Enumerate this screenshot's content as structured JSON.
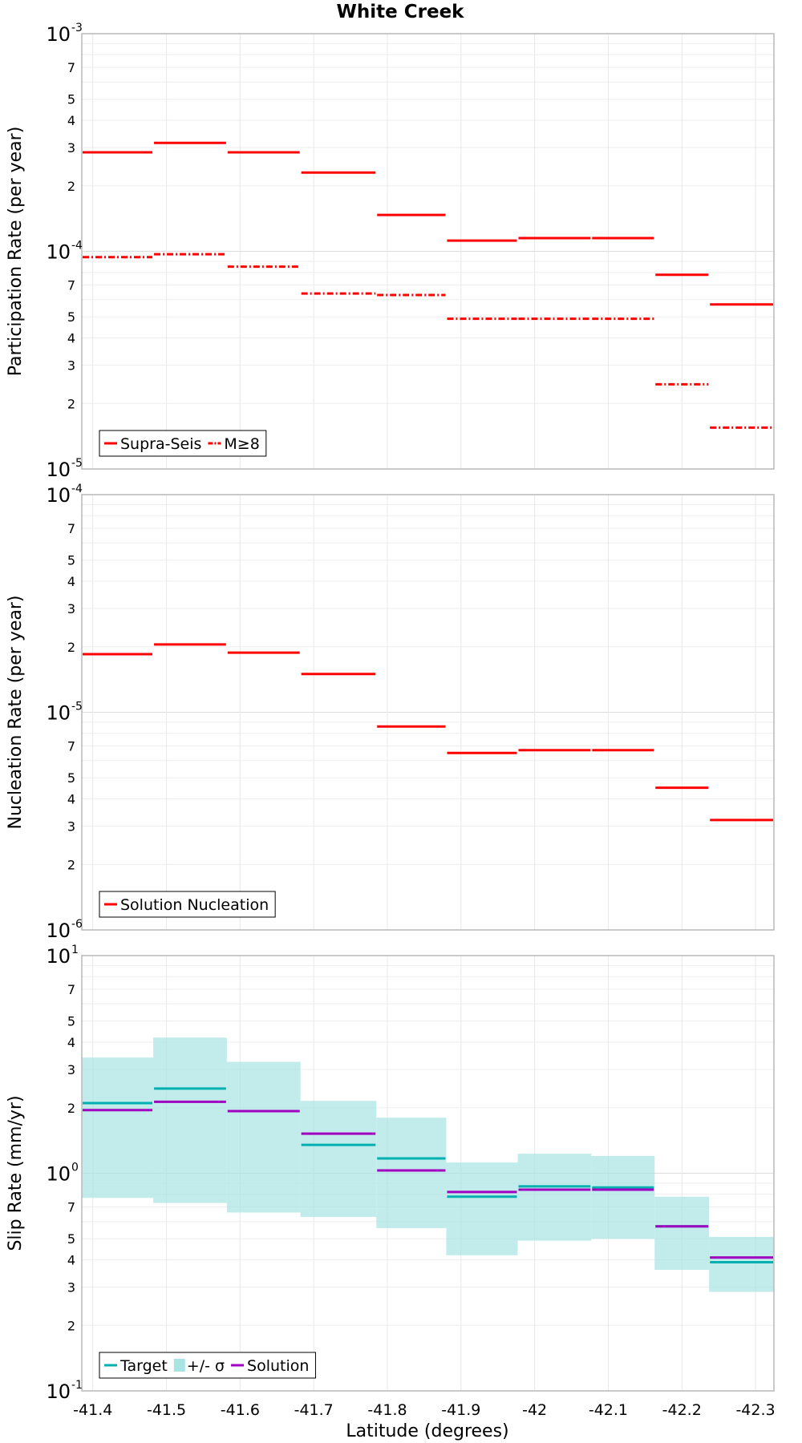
{
  "title": "White Creek",
  "xlabel": "Latitude (degrees)",
  "x_tick_labels": [
    "-41.4",
    "-41.5",
    "-41.6",
    "-41.7",
    "-41.8",
    "-41.9",
    "-42",
    "-42.1",
    "-42.2",
    "-42.3"
  ],
  "colors": {
    "red": "#ff0000",
    "cyan": "#00b0b0",
    "purple": "#a000c0",
    "band": "#a8e4e2",
    "grid": "#e8e8e8",
    "frame": "#b8b8b8"
  },
  "chart_data": [
    {
      "type": "line",
      "style": "step",
      "ylabel": "Participation Rate (per year)",
      "ylim": [
        1e-05,
        0.001
      ],
      "xlim": [
        -41.385,
        -42.325
      ],
      "x_ticks": [
        -41.4,
        -41.5,
        -41.6,
        -41.7,
        -41.8,
        -41.9,
        -42.0,
        -42.1,
        -42.2,
        -42.3
      ],
      "y_major_labels": [
        {
          "value": 0.001,
          "base": "10",
          "exp": "-3"
        },
        {
          "value": 0.0001,
          "base": "10",
          "exp": "-4"
        },
        {
          "value": 1e-05,
          "base": "10",
          "exp": "-5"
        }
      ],
      "y_minor_labels": [
        {
          "value": 0.0007,
          "label": "7"
        },
        {
          "value": 0.0005,
          "label": "5"
        },
        {
          "value": 0.0004,
          "label": "4"
        },
        {
          "value": 0.0003,
          "label": "3"
        },
        {
          "value": 0.0002,
          "label": "2"
        },
        {
          "value": 7e-05,
          "label": "7"
        },
        {
          "value": 5e-05,
          "label": "5"
        },
        {
          "value": 4e-05,
          "label": "4"
        },
        {
          "value": 3e-05,
          "label": "3"
        },
        {
          "value": 2e-05,
          "label": "2"
        }
      ],
      "legend": {
        "position": "bottom-left",
        "entries": [
          {
            "label": "Supra-Seis",
            "style": "solid"
          },
          {
            "label": "M≥8",
            "style": "dashdot"
          }
        ]
      },
      "series": [
        {
          "name": "Supra-Seis",
          "color": "#ff0000",
          "style": "solid",
          "segments": [
            {
              "x0": -41.385,
              "x1": -41.482,
              "y": 0.000285
            },
            {
              "x0": -41.482,
              "x1": -41.582,
              "y": 0.000315
            },
            {
              "x0": -41.582,
              "x1": -41.682,
              "y": 0.000285
            },
            {
              "x0": -41.682,
              "x1": -41.785,
              "y": 0.00023
            },
            {
              "x0": -41.785,
              "x1": -41.88,
              "y": 0.000147
            },
            {
              "x0": -41.88,
              "x1": -41.977,
              "y": 0.000112
            },
            {
              "x0": -41.977,
              "x1": -42.077,
              "y": 0.000115
            },
            {
              "x0": -42.077,
              "x1": -42.163,
              "y": 0.000115
            },
            {
              "x0": -42.163,
              "x1": -42.237,
              "y": 7.8e-05
            },
            {
              "x0": -42.237,
              "x1": -42.325,
              "y": 5.7e-05
            }
          ]
        },
        {
          "name": "M≥8",
          "color": "#ff0000",
          "style": "dashdot",
          "segments": [
            {
              "x0": -41.385,
              "x1": -41.482,
              "y": 9.4e-05
            },
            {
              "x0": -41.482,
              "x1": -41.582,
              "y": 9.7e-05
            },
            {
              "x0": -41.582,
              "x1": -41.682,
              "y": 8.5e-05
            },
            {
              "x0": -41.682,
              "x1": -41.785,
              "y": 6.4e-05
            },
            {
              "x0": -41.785,
              "x1": -41.88,
              "y": 6.3e-05
            },
            {
              "x0": -41.88,
              "x1": -41.977,
              "y": 4.9e-05
            },
            {
              "x0": -41.977,
              "x1": -42.077,
              "y": 4.9e-05
            },
            {
              "x0": -42.077,
              "x1": -42.163,
              "y": 4.9e-05
            },
            {
              "x0": -42.163,
              "x1": -42.237,
              "y": 2.45e-05
            },
            {
              "x0": -42.237,
              "x1": -42.325,
              "y": 1.55e-05
            }
          ]
        }
      ]
    },
    {
      "type": "line",
      "style": "step",
      "ylabel": "Nucleation Rate (per year)",
      "ylim": [
        1e-06,
        0.0001
      ],
      "xlim": [
        -41.385,
        -42.325
      ],
      "x_ticks": [
        -41.4,
        -41.5,
        -41.6,
        -41.7,
        -41.8,
        -41.9,
        -42.0,
        -42.1,
        -42.2,
        -42.3
      ],
      "y_major_labels": [
        {
          "value": 0.0001,
          "base": "10",
          "exp": "-4"
        },
        {
          "value": 1e-05,
          "base": "10",
          "exp": "-5"
        },
        {
          "value": 1e-06,
          "base": "10",
          "exp": "-6"
        }
      ],
      "y_minor_labels": [
        {
          "value": 7e-05,
          "label": "7"
        },
        {
          "value": 5e-05,
          "label": "5"
        },
        {
          "value": 4e-05,
          "label": "4"
        },
        {
          "value": 3e-05,
          "label": "3"
        },
        {
          "value": 2e-05,
          "label": "2"
        },
        {
          "value": 7e-06,
          "label": "7"
        },
        {
          "value": 5e-06,
          "label": "5"
        },
        {
          "value": 4e-06,
          "label": "4"
        },
        {
          "value": 3e-06,
          "label": "3"
        },
        {
          "value": 2e-06,
          "label": "2"
        }
      ],
      "legend": {
        "position": "bottom-left",
        "entries": [
          {
            "label": "Solution Nucleation",
            "style": "solid"
          }
        ]
      },
      "series": [
        {
          "name": "Solution Nucleation",
          "color": "#ff0000",
          "style": "solid",
          "segments": [
            {
              "x0": -41.385,
              "x1": -41.482,
              "y": 1.85e-05
            },
            {
              "x0": -41.482,
              "x1": -41.582,
              "y": 2.05e-05
            },
            {
              "x0": -41.582,
              "x1": -41.682,
              "y": 1.88e-05
            },
            {
              "x0": -41.682,
              "x1": -41.785,
              "y": 1.5e-05
            },
            {
              "x0": -41.785,
              "x1": -41.88,
              "y": 8.6e-06
            },
            {
              "x0": -41.88,
              "x1": -41.977,
              "y": 6.5e-06
            },
            {
              "x0": -41.977,
              "x1": -42.077,
              "y": 6.7e-06
            },
            {
              "x0": -42.077,
              "x1": -42.163,
              "y": 6.7e-06
            },
            {
              "x0": -42.163,
              "x1": -42.237,
              "y": 4.5e-06
            },
            {
              "x0": -42.237,
              "x1": -42.325,
              "y": 3.2e-06
            }
          ]
        }
      ]
    },
    {
      "type": "line",
      "style": "step",
      "ylabel": "Slip Rate (mm/yr)",
      "ylim": [
        0.1,
        10
      ],
      "xlim": [
        -41.385,
        -42.325
      ],
      "x_ticks": [
        -41.4,
        -41.5,
        -41.6,
        -41.7,
        -41.8,
        -41.9,
        -42.0,
        -42.1,
        -42.2,
        -42.3
      ],
      "y_major_labels": [
        {
          "value": 10,
          "base": "10",
          "exp": "1"
        },
        {
          "value": 1,
          "base": "10",
          "exp": "0"
        },
        {
          "value": 0.1,
          "base": "10",
          "exp": "-1"
        }
      ],
      "y_minor_labels": [
        {
          "value": 7,
          "label": "7"
        },
        {
          "value": 5,
          "label": "5"
        },
        {
          "value": 4,
          "label": "4"
        },
        {
          "value": 3,
          "label": "3"
        },
        {
          "value": 2,
          "label": "2"
        },
        {
          "value": 0.7,
          "label": "7"
        },
        {
          "value": 0.5,
          "label": "5"
        },
        {
          "value": 0.4,
          "label": "4"
        },
        {
          "value": 0.3,
          "label": "3"
        },
        {
          "value": 0.2,
          "label": "2"
        }
      ],
      "legend": {
        "position": "bottom-left",
        "entries": [
          {
            "label": "Target",
            "style": "solid"
          },
          {
            "label": "+/- σ",
            "style": "band"
          },
          {
            "label": "Solution",
            "style": "solid"
          }
        ]
      },
      "bands": [
        {
          "name": "+/- σ",
          "color": "#a8e4e2",
          "segments": [
            {
              "x0": -41.385,
              "x1": -41.482,
              "lo": 0.77,
              "hi": 3.4
            },
            {
              "x0": -41.482,
              "x1": -41.582,
              "lo": 0.73,
              "hi": 4.2
            },
            {
              "x0": -41.582,
              "x1": -41.682,
              "lo": 0.66,
              "hi": 3.25
            },
            {
              "x0": -41.682,
              "x1": -41.785,
              "lo": 0.63,
              "hi": 2.15
            },
            {
              "x0": -41.785,
              "x1": -41.88,
              "lo": 0.56,
              "hi": 1.8
            },
            {
              "x0": -41.88,
              "x1": -41.977,
              "lo": 0.42,
              "hi": 1.12
            },
            {
              "x0": -41.977,
              "x1": -42.077,
              "lo": 0.49,
              "hi": 1.23
            },
            {
              "x0": -42.077,
              "x1": -42.163,
              "lo": 0.5,
              "hi": 1.2
            },
            {
              "x0": -42.163,
              "x1": -42.237,
              "lo": 0.36,
              "hi": 0.78
            },
            {
              "x0": -42.237,
              "x1": -42.325,
              "lo": 0.285,
              "hi": 0.51
            }
          ]
        }
      ],
      "series": [
        {
          "name": "Target",
          "color": "#00b0b0",
          "style": "solid",
          "segments": [
            {
              "x0": -41.385,
              "x1": -41.482,
              "y": 2.1
            },
            {
              "x0": -41.482,
              "x1": -41.582,
              "y": 2.45
            },
            {
              "x0": -41.582,
              "x1": -41.682,
              "y": 1.93
            },
            {
              "x0": -41.682,
              "x1": -41.785,
              "y": 1.35
            },
            {
              "x0": -41.785,
              "x1": -41.88,
              "y": 1.17
            },
            {
              "x0": -41.88,
              "x1": -41.977,
              "y": 0.78
            },
            {
              "x0": -41.977,
              "x1": -42.077,
              "y": 0.87
            },
            {
              "x0": -42.077,
              "x1": -42.163,
              "y": 0.86
            },
            {
              "x0": -42.163,
              "x1": -42.237,
              "y": 0.57
            },
            {
              "x0": -42.237,
              "x1": -42.325,
              "y": 0.39
            }
          ]
        },
        {
          "name": "Solution",
          "color": "#a000c0",
          "style": "solid",
          "segments": [
            {
              "x0": -41.385,
              "x1": -41.482,
              "y": 1.95
            },
            {
              "x0": -41.482,
              "x1": -41.582,
              "y": 2.13
            },
            {
              "x0": -41.582,
              "x1": -41.682,
              "y": 1.93
            },
            {
              "x0": -41.682,
              "x1": -41.785,
              "y": 1.52
            },
            {
              "x0": -41.785,
              "x1": -41.88,
              "y": 1.03
            },
            {
              "x0": -41.88,
              "x1": -41.977,
              "y": 0.82
            },
            {
              "x0": -41.977,
              "x1": -42.077,
              "y": 0.84
            },
            {
              "x0": -42.077,
              "x1": -42.163,
              "y": 0.84
            },
            {
              "x0": -42.163,
              "x1": -42.237,
              "y": 0.57
            },
            {
              "x0": -42.237,
              "x1": -42.325,
              "y": 0.41
            }
          ]
        }
      ]
    }
  ]
}
